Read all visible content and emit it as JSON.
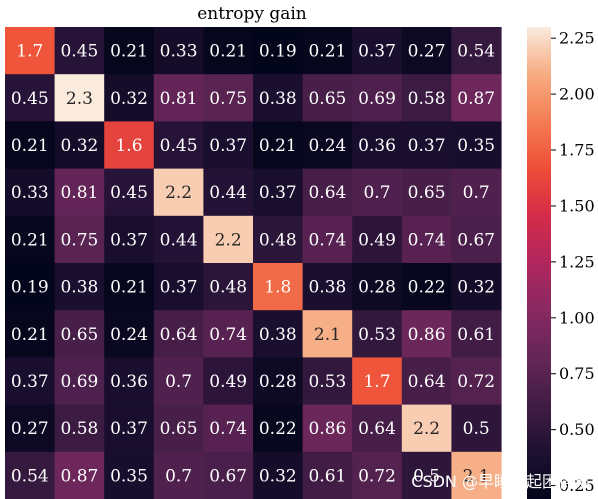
{
  "chart_data": {
    "type": "heatmap",
    "title": "entropy gain",
    "xlabel": "",
    "ylabel": "",
    "rows": 10,
    "cols": 10,
    "values": [
      [
        1.7,
        0.45,
        0.21,
        0.33,
        0.21,
        0.19,
        0.21,
        0.37,
        0.27,
        0.54
      ],
      [
        0.45,
        2.3,
        0.32,
        0.81,
        0.75,
        0.38,
        0.65,
        0.69,
        0.58,
        0.87
      ],
      [
        0.21,
        0.32,
        1.6,
        0.45,
        0.37,
        0.21,
        0.24,
        0.36,
        0.37,
        0.35
      ],
      [
        0.33,
        0.81,
        0.45,
        2.2,
        0.44,
        0.37,
        0.64,
        0.7,
        0.65,
        0.7
      ],
      [
        0.21,
        0.75,
        0.37,
        0.44,
        2.2,
        0.48,
        0.74,
        0.49,
        0.74,
        0.67
      ],
      [
        0.19,
        0.38,
        0.21,
        0.37,
        0.48,
        1.8,
        0.38,
        0.28,
        0.22,
        0.32
      ],
      [
        0.21,
        0.65,
        0.24,
        0.64,
        0.74,
        0.38,
        2.1,
        0.53,
        0.86,
        0.61
      ],
      [
        0.37,
        0.69,
        0.36,
        0.7,
        0.49,
        0.28,
        0.53,
        1.7,
        0.64,
        0.72
      ],
      [
        0.27,
        0.58,
        0.37,
        0.65,
        0.74,
        0.22,
        0.86,
        0.64,
        2.2,
        0.5
      ],
      [
        0.54,
        0.87,
        0.35,
        0.7,
        0.67,
        0.32,
        0.61,
        0.72,
        0.5,
        2.1
      ]
    ],
    "annotations": true,
    "colormap": "rocket",
    "vmin": 0.19,
    "vmax": 2.3,
    "colorbar": {
      "ticks": [
        0.25,
        0.5,
        0.75,
        1.0,
        1.25,
        1.5,
        1.75,
        2.0,
        2.25
      ],
      "tick_labels": [
        "0.25",
        "0.50",
        "0.75",
        "1.00",
        "1.25",
        "1.50",
        "1.75",
        "2.00",
        "2.25"
      ]
    }
  },
  "watermark": "CSDN @早睡早起困得早"
}
